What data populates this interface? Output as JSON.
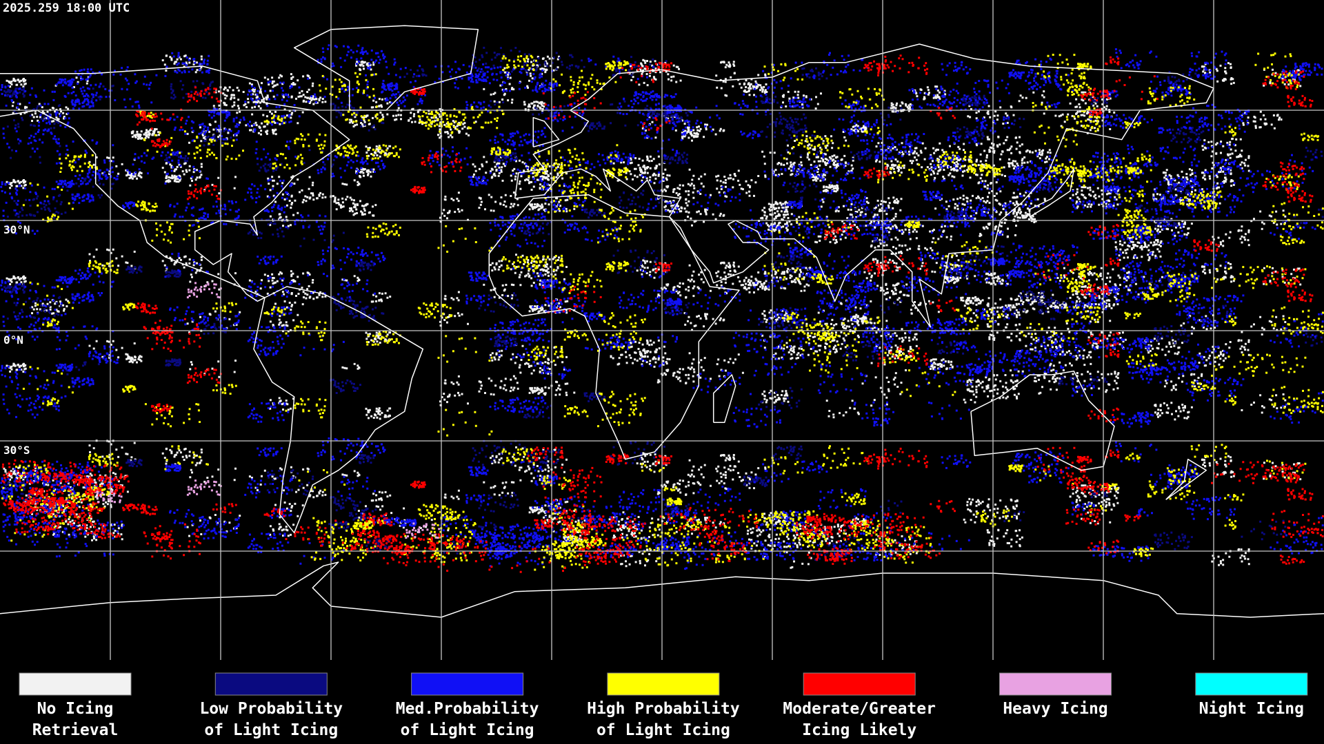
{
  "header": {
    "timestamp": "2025.259 18:00 UTC"
  },
  "map": {
    "latitude_labels": [
      "30°N",
      "0°N",
      "30°S"
    ]
  },
  "legend": {
    "items": [
      {
        "label": [
          "No Icing",
          "Retrieval"
        ],
        "color": "#f2f2f2"
      },
      {
        "label": [
          "Low Probability",
          "of Light Icing"
        ],
        "color": "#0a0a80"
      },
      {
        "label": [
          "Med.Probability",
          "of Light Icing"
        ],
        "color": "#1010f5"
      },
      {
        "label": [
          "High Probability",
          "of Light Icing"
        ],
        "color": "#ffff00"
      },
      {
        "label": [
          "Moderate/Greater",
          "Icing Likely"
        ],
        "color": "#ff0000"
      },
      {
        "label": [
          "Heavy Icing"
        ],
        "color": "#e8a2e2"
      },
      {
        "label": [
          "Night Icing"
        ],
        "color": "#00ffff"
      }
    ]
  }
}
